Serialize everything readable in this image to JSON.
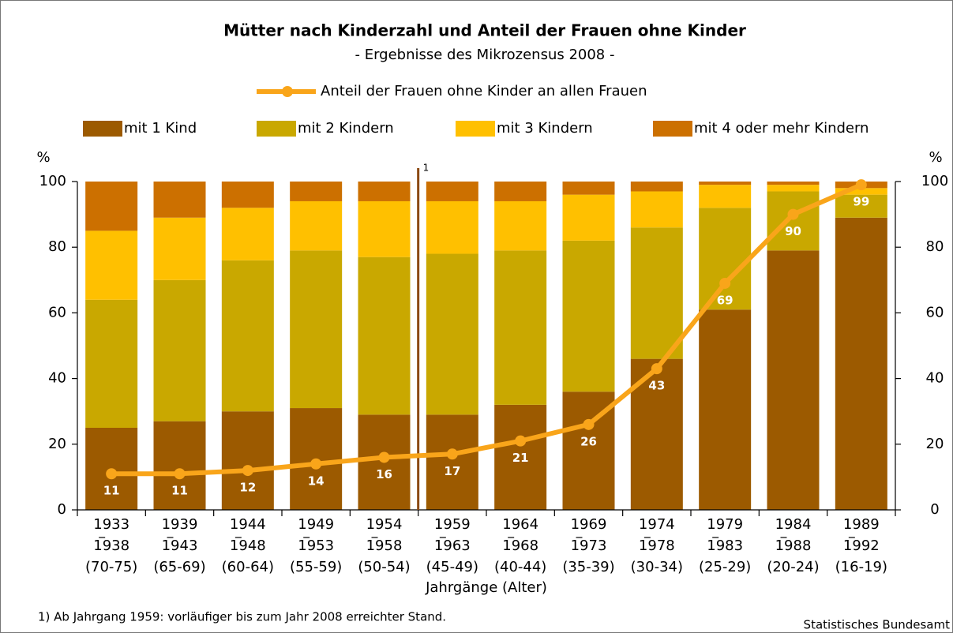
{
  "chart_data": {
    "type": "bar",
    "stacked": true,
    "title": "Mütter nach Kinderzahl und Anteil der Frauen ohne Kinder",
    "subtitle": "- Ergebnisse des Mikrozensus 2008 -",
    "xlabel": "Jahrgänge (Alter)",
    "ylabel": "%",
    "y2label": "%",
    "categories": [
      [
        "1933",
        "1938",
        "(70-75)"
      ],
      [
        "1939",
        "1943",
        "(65-69)"
      ],
      [
        "1944",
        "1948",
        "(60-64)"
      ],
      [
        "1949",
        "1953",
        "(55-59)"
      ],
      [
        "1954",
        "1958",
        "(50-54)"
      ],
      [
        "1959",
        "1963",
        "(45-49)"
      ],
      [
        "1964",
        "1968",
        "(40-44)"
      ],
      [
        "1969",
        "1973",
        "(35-39)"
      ],
      [
        "1974",
        "1978",
        "(30-34)"
      ],
      [
        "1979",
        "1983",
        "(25-29)"
      ],
      [
        "1984",
        "1988",
        "(20-24)"
      ],
      [
        "1989",
        "1992",
        "(16-19)"
      ]
    ],
    "series": [
      {
        "name": "mit 1 Kind",
        "color": "#9c5a00",
        "values": [
          25,
          27,
          30,
          31,
          29,
          29,
          32,
          36,
          46,
          61,
          79,
          89
        ]
      },
      {
        "name": "mit 2 Kindern",
        "color": "#c9a800",
        "values": [
          39,
          43,
          46,
          48,
          48,
          49,
          47,
          46,
          40,
          31,
          18,
          7
        ]
      },
      {
        "name": "mit 3 Kindern",
        "color": "#ffc000",
        "values": [
          21,
          19,
          16,
          15,
          17,
          16,
          15,
          14,
          11,
          7,
          2,
          2
        ]
      },
      {
        "name": "mit 4 oder mehr Kindern",
        "color": "#cc7000",
        "values": [
          15,
          11,
          8,
          6,
          6,
          6,
          6,
          4,
          3,
          1,
          1,
          2
        ]
      },
      {
        "name": "Anteil der Frauen ohne Kinder an allen Frauen",
        "type": "line",
        "axis": "y2",
        "color": "#f9a51a",
        "values": [
          11,
          11,
          12,
          14,
          16,
          17,
          21,
          26,
          43,
          69,
          90,
          99
        ]
      }
    ],
    "ylim": [
      0,
      100
    ],
    "yticks": [
      0,
      20,
      40,
      60,
      80,
      100
    ],
    "y2lim": [
      0,
      100
    ],
    "y2ticks": [
      0,
      20,
      40,
      60,
      80,
      100
    ],
    "annotations": [
      {
        "text": "1",
        "after_category": 4
      }
    ],
    "footnote": "1) Ab Jahrgang 1959: vorläufiger bis zum Jahr 2008 erreichter Stand.",
    "source": "Statistisches Bundesamt"
  }
}
